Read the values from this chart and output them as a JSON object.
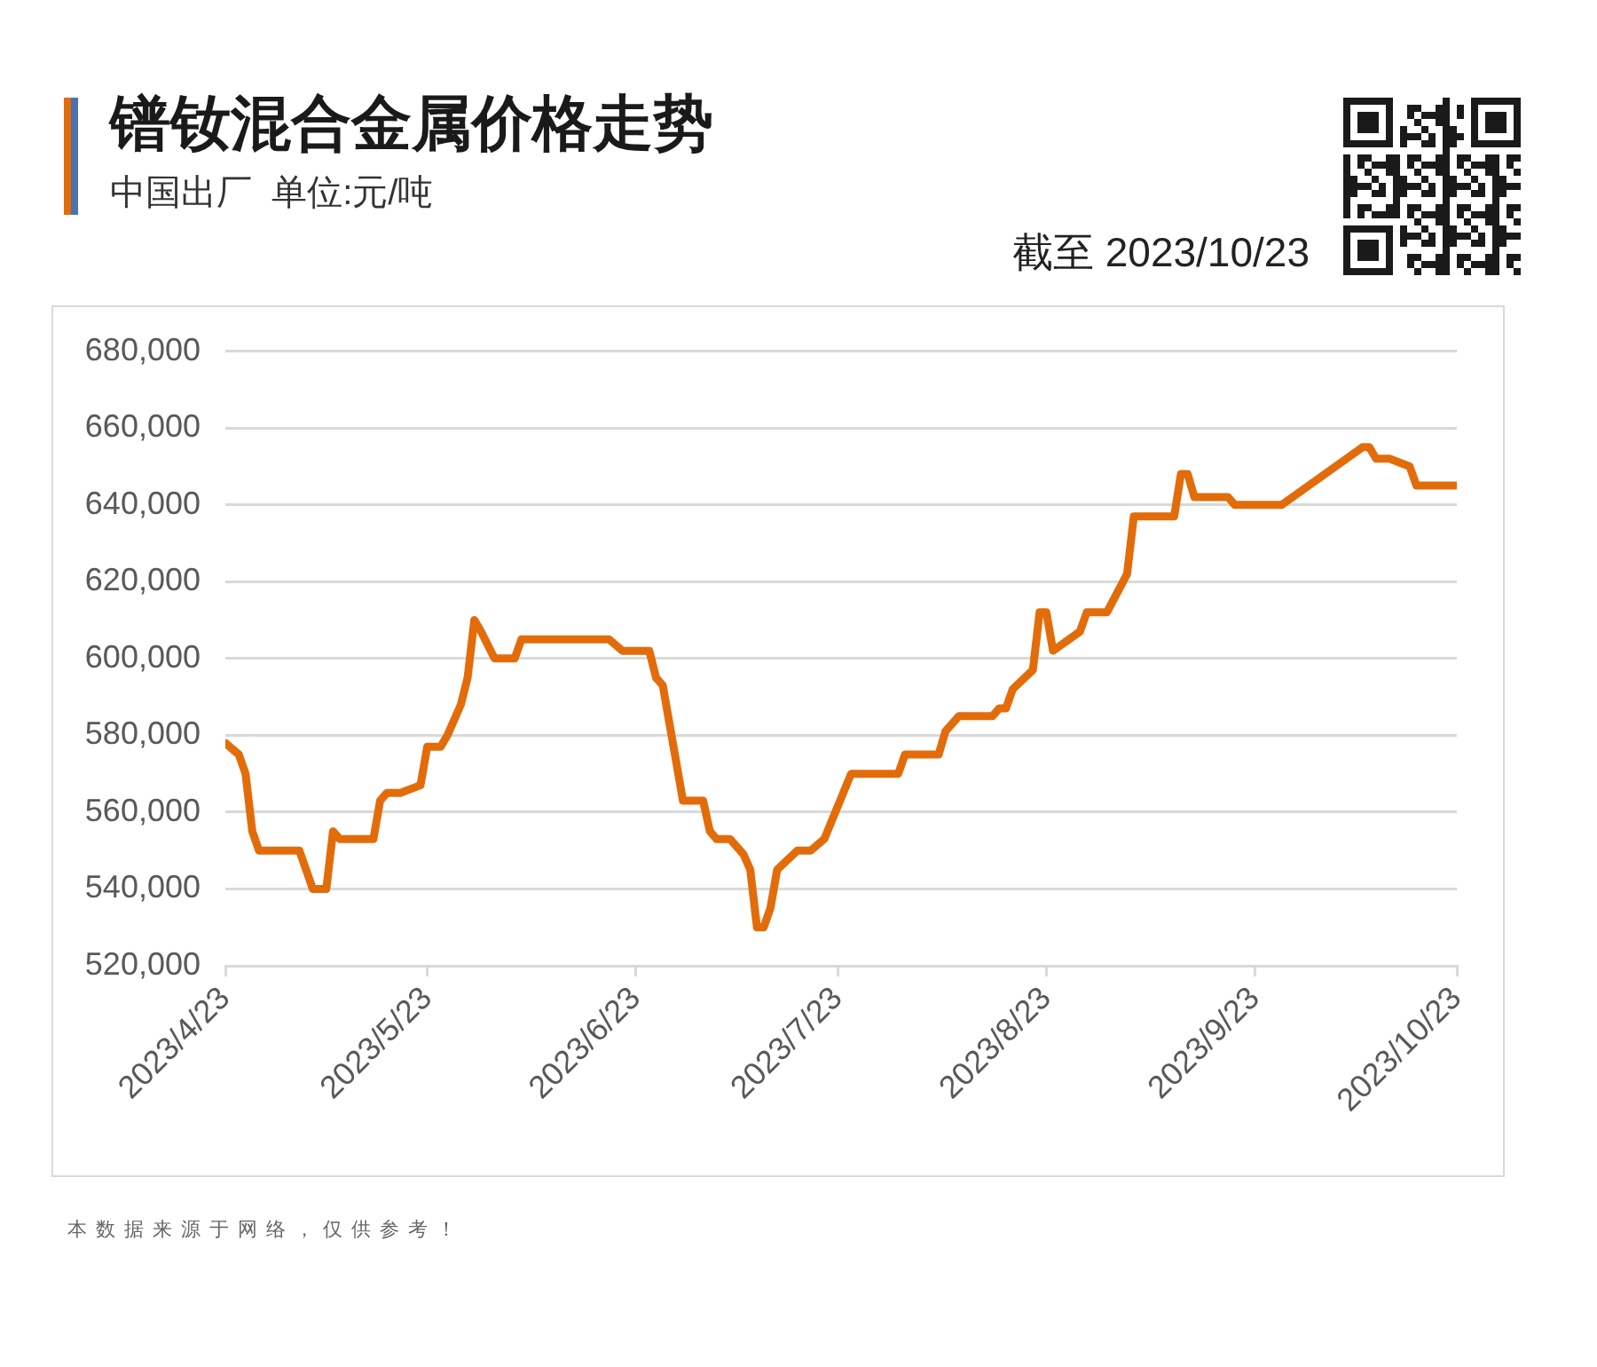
{
  "chart_data": {
    "type": "line",
    "title": "镨钕混合金属价格走势",
    "subtitle": "中国出厂  单位:元/吨",
    "annotations": [
      "截至 2023/10/23",
      "本数据来源于网络，仅供参考！"
    ],
    "x": [
      "2023-04-23",
      "2023-04-25",
      "2023-04-26",
      "2023-04-27",
      "2023-04-28",
      "2023-05-04",
      "2023-05-06",
      "2023-05-08",
      "2023-05-09",
      "2023-05-10",
      "2023-05-15",
      "2023-05-16",
      "2023-05-17",
      "2023-05-19",
      "2023-05-22",
      "2023-05-23",
      "2023-05-25",
      "2023-05-26",
      "2023-05-28",
      "2023-05-29",
      "2023-05-30",
      "2023-05-31",
      "2023-06-02",
      "2023-06-05",
      "2023-06-06",
      "2023-06-19",
      "2023-06-21",
      "2023-06-25",
      "2023-06-26",
      "2023-06-27",
      "2023-06-30",
      "2023-07-03",
      "2023-07-04",
      "2023-07-05",
      "2023-07-07",
      "2023-07-09",
      "2023-07-10",
      "2023-07-11",
      "2023-07-12",
      "2023-07-13",
      "2023-07-14",
      "2023-07-17",
      "2023-07-19",
      "2023-07-21",
      "2023-07-25",
      "2023-08-01",
      "2023-08-02",
      "2023-08-07",
      "2023-08-08",
      "2023-08-10",
      "2023-08-15",
      "2023-08-16",
      "2023-08-17",
      "2023-08-18",
      "2023-08-21",
      "2023-08-22",
      "2023-08-23",
      "2023-08-24",
      "2023-08-28",
      "2023-08-29",
      "2023-09-01",
      "2023-09-04",
      "2023-09-05",
      "2023-09-11",
      "2023-09-12",
      "2023-09-13",
      "2023-09-14",
      "2023-09-19",
      "2023-09-20",
      "2023-09-27",
      "2023-10-09",
      "2023-10-10",
      "2023-10-11",
      "2023-10-13",
      "2023-10-16",
      "2023-10-17",
      "2023-10-23"
    ],
    "values": [
      578000,
      575000,
      570000,
      555000,
      550000,
      550000,
      540000,
      540000,
      555000,
      553000,
      553000,
      563000,
      565000,
      565000,
      567000,
      577000,
      577000,
      580000,
      588000,
      595000,
      610000,
      607000,
      600000,
      600000,
      605000,
      605000,
      602000,
      602000,
      595000,
      593000,
      563000,
      563000,
      555000,
      553000,
      553000,
      549000,
      545000,
      530000,
      530000,
      535000,
      545000,
      550000,
      550000,
      553000,
      570000,
      570000,
      575000,
      575000,
      581000,
      585000,
      585000,
      587000,
      587000,
      592000,
      597000,
      612000,
      612000,
      602000,
      607000,
      612000,
      612000,
      622000,
      637000,
      637000,
      648000,
      648000,
      642000,
      642000,
      640000,
      640000,
      655000,
      655000,
      652000,
      652000,
      650000,
      645000,
      645000
    ],
    "color": "#e36c0a",
    "line_style": "solid",
    "xlim": [
      "2023-04-23",
      "2023-10-23"
    ],
    "xticks": [
      {
        "value": "2023-04-23",
        "label": "2023/4/23"
      },
      {
        "value": "2023-05-23",
        "label": "2023/5/23"
      },
      {
        "value": "2023-06-23",
        "label": "2023/6/23"
      },
      {
        "value": "2023-07-23",
        "label": "2023/7/23"
      },
      {
        "value": "2023-08-23",
        "label": "2023/8/23"
      },
      {
        "value": "2023-09-23",
        "label": "2023/9/23"
      },
      {
        "value": "2023-10-23",
        "label": "2023/10/23"
      }
    ],
    "ylim": [
      520000,
      680000
    ],
    "yticks": [
      {
        "value": 520000,
        "label": "520,000"
      },
      {
        "value": 540000,
        "label": "540,000"
      },
      {
        "value": 560000,
        "label": "560,000"
      },
      {
        "value": 580000,
        "label": "580,000"
      },
      {
        "value": 600000,
        "label": "600,000"
      },
      {
        "value": 620000,
        "label": "620,000"
      },
      {
        "value": 640000,
        "label": "640,000"
      },
      {
        "value": 660000,
        "label": "660,000"
      },
      {
        "value": 680000,
        "label": "680,000"
      }
    ],
    "grid": "y"
  }
}
